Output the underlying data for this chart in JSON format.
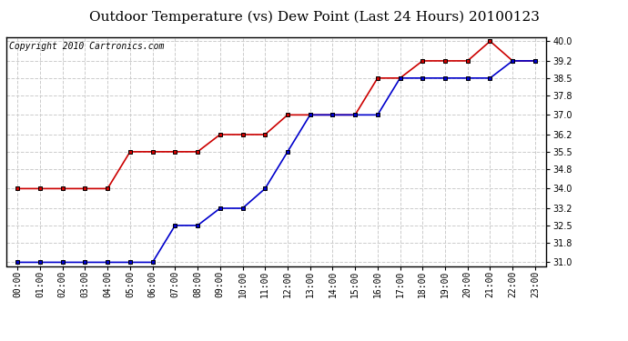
{
  "title": "Outdoor Temperature (vs) Dew Point (Last 24 Hours) 20100123",
  "copyright": "Copyright 2010 Cartronics.com",
  "hours": [
    "00:00",
    "01:00",
    "02:00",
    "03:00",
    "04:00",
    "05:00",
    "06:00",
    "07:00",
    "08:00",
    "09:00",
    "10:00",
    "11:00",
    "12:00",
    "13:00",
    "14:00",
    "15:00",
    "16:00",
    "17:00",
    "18:00",
    "19:00",
    "20:00",
    "21:00",
    "22:00",
    "23:00"
  ],
  "temp": [
    34.0,
    34.0,
    34.0,
    34.0,
    34.0,
    35.5,
    35.5,
    35.5,
    35.5,
    36.2,
    36.2,
    36.2,
    37.0,
    37.0,
    37.0,
    37.0,
    38.5,
    38.5,
    39.2,
    39.2,
    39.2,
    40.0,
    39.2,
    39.2
  ],
  "dewpoint": [
    31.0,
    31.0,
    31.0,
    31.0,
    31.0,
    31.0,
    31.0,
    32.5,
    32.5,
    33.2,
    33.2,
    34.0,
    35.5,
    37.0,
    37.0,
    37.0,
    37.0,
    38.5,
    38.5,
    38.5,
    38.5,
    38.5,
    39.2,
    39.2
  ],
  "temp_color": "#cc0000",
  "dewpoint_color": "#0000cc",
  "marker": "s",
  "marker_color": "#000000",
  "marker_size": 3,
  "line_width": 1.2,
  "ylim_min": 31.0,
  "ylim_max": 40.0,
  "yticks": [
    31.0,
    31.8,
    32.5,
    33.2,
    34.0,
    34.8,
    35.5,
    36.2,
    37.0,
    37.8,
    38.5,
    39.2,
    40.0
  ],
  "grid_color": "#cccccc",
  "grid_style": "--",
  "background_color": "#ffffff",
  "title_fontsize": 11,
  "copyright_fontsize": 7,
  "tick_fontsize": 7
}
